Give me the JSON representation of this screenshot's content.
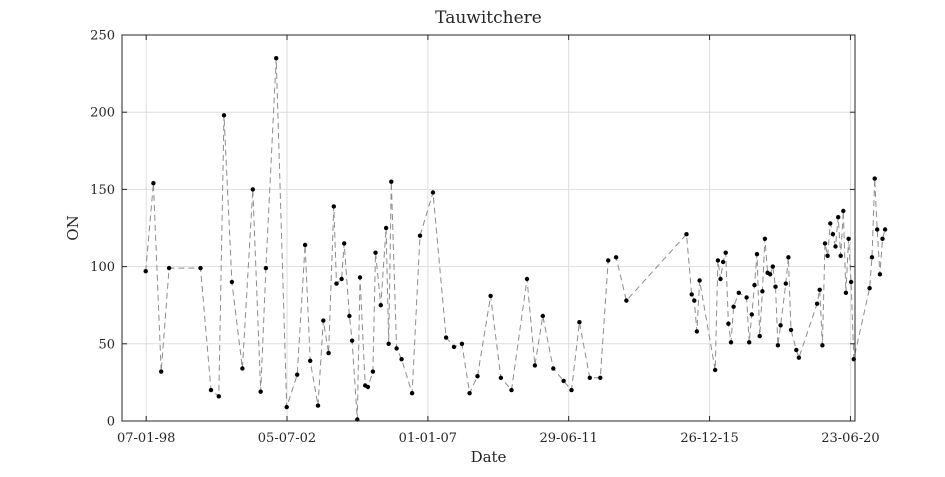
{
  "chart_data": {
    "type": "line",
    "title": "Tauwitchere",
    "xlabel": "Date",
    "ylabel": "ON",
    "ylim": [
      0,
      250
    ],
    "xlim": [
      "1997-03-31",
      "2020-08-15"
    ],
    "yticks": [
      0,
      50,
      100,
      150,
      200,
      250
    ],
    "xticks": [
      {
        "date": "1998-01-07",
        "label": "07-01-98"
      },
      {
        "date": "2002-07-05",
        "label": "05-07-02"
      },
      {
        "date": "2007-01-01",
        "label": "01-01-07"
      },
      {
        "date": "2011-06-29",
        "label": "29-06-11"
      },
      {
        "date": "2015-12-26",
        "label": "26-12-15"
      },
      {
        "date": "2020-06-23",
        "label": "23-06-20"
      }
    ],
    "grid": true,
    "line_style": "dashed",
    "line_color": "#8c8c8c",
    "marker_color": "#000000",
    "series": [
      {
        "points": [
          [
            "1998-01-01",
            97
          ],
          [
            "1998-04-01",
            154
          ],
          [
            "1998-07-01",
            32
          ],
          [
            "1998-10-01",
            99
          ],
          [
            "1999-10-01",
            99
          ],
          [
            "2000-02-01",
            20
          ],
          [
            "2000-05-01",
            16
          ],
          [
            "2000-07-01",
            198
          ],
          [
            "2000-10-01",
            90
          ],
          [
            "2001-02-01",
            34
          ],
          [
            "2001-06-01",
            150
          ],
          [
            "2001-09-01",
            19
          ],
          [
            "2001-11-01",
            99
          ],
          [
            "2002-03-01",
            235
          ],
          [
            "2002-07-01",
            9
          ],
          [
            "2002-11-01",
            30
          ],
          [
            "2003-02-01",
            114
          ],
          [
            "2003-04-01",
            39
          ],
          [
            "2003-07-01",
            10
          ],
          [
            "2003-09-01",
            65
          ],
          [
            "2003-11-01",
            44
          ],
          [
            "2004-01-01",
            139
          ],
          [
            "2004-02-01",
            89
          ],
          [
            "2004-04-01",
            92
          ],
          [
            "2004-05-01",
            115
          ],
          [
            "2004-07-01",
            68
          ],
          [
            "2004-08-01",
            52
          ],
          [
            "2004-10-01",
            1
          ],
          [
            "2004-11-01",
            93
          ],
          [
            "2005-01-01",
            23
          ],
          [
            "2005-02-01",
            22
          ],
          [
            "2005-04-01",
            32
          ],
          [
            "2005-05-01",
            109
          ],
          [
            "2005-07-01",
            75
          ],
          [
            "2005-09-01",
            125
          ],
          [
            "2005-10-01",
            50
          ],
          [
            "2005-11-01",
            155
          ],
          [
            "2006-01-01",
            47
          ],
          [
            "2006-03-01",
            40
          ],
          [
            "2006-07-01",
            18
          ],
          [
            "2006-10-01",
            120
          ],
          [
            "2007-03-01",
            148
          ],
          [
            "2007-08-01",
            54
          ],
          [
            "2007-11-01",
            48
          ],
          [
            "2008-02-01",
            50
          ],
          [
            "2008-05-01",
            18
          ],
          [
            "2008-08-01",
            29
          ],
          [
            "2009-01-01",
            81
          ],
          [
            "2009-05-01",
            28
          ],
          [
            "2009-09-01",
            20
          ],
          [
            "2010-03-01",
            92
          ],
          [
            "2010-06-01",
            36
          ],
          [
            "2010-09-01",
            68
          ],
          [
            "2011-01-01",
            34
          ],
          [
            "2011-05-01",
            26
          ],
          [
            "2011-08-01",
            20
          ],
          [
            "2011-11-01",
            64
          ],
          [
            "2012-03-01",
            28
          ],
          [
            "2012-07-01",
            28
          ],
          [
            "2012-10-01",
            104
          ],
          [
            "2013-01-01",
            106
          ],
          [
            "2013-05-01",
            78
          ],
          [
            "2015-04-01",
            121
          ],
          [
            "2015-06-01",
            82
          ],
          [
            "2015-07-01",
            78
          ],
          [
            "2015-08-01",
            58
          ],
          [
            "2015-09-01",
            91
          ],
          [
            "2016-03-01",
            33
          ],
          [
            "2016-04-01",
            104
          ],
          [
            "2016-05-01",
            92
          ],
          [
            "2016-06-01",
            103
          ],
          [
            "2016-07-01",
            109
          ],
          [
            "2016-08-01",
            63
          ],
          [
            "2016-09-01",
            51
          ],
          [
            "2016-10-01",
            74
          ],
          [
            "2016-12-01",
            83
          ],
          [
            "2017-03-01",
            80
          ],
          [
            "2017-04-01",
            51
          ],
          [
            "2017-05-01",
            69
          ],
          [
            "2017-06-01",
            88
          ],
          [
            "2017-07-01",
            108
          ],
          [
            "2017-08-01",
            55
          ],
          [
            "2017-09-01",
            84
          ],
          [
            "2017-10-01",
            118
          ],
          [
            "2017-11-01",
            96
          ],
          [
            "2017-12-01",
            95
          ],
          [
            "2018-01-01",
            100
          ],
          [
            "2018-02-01",
            87
          ],
          [
            "2018-03-01",
            49
          ],
          [
            "2018-04-01",
            62
          ],
          [
            "2018-06-01",
            89
          ],
          [
            "2018-07-01",
            106
          ],
          [
            "2018-08-01",
            59
          ],
          [
            "2018-10-01",
            46
          ],
          [
            "2018-11-01",
            41
          ],
          [
            "2019-06-01",
            76
          ],
          [
            "2019-07-01",
            85
          ],
          [
            "2019-08-01",
            49
          ],
          [
            "2019-09-01",
            115
          ],
          [
            "2019-10-01",
            107
          ],
          [
            "2019-11-01",
            128
          ],
          [
            "2019-12-01",
            121
          ],
          [
            "2020-01-01",
            113
          ],
          [
            "2020-02-01",
            132
          ],
          [
            "2020-03-01",
            107
          ],
          [
            "2020-04-01",
            136
          ],
          [
            "2020-05-01",
            83
          ],
          [
            "2020-06-01",
            118
          ],
          [
            "2020-07-01",
            90
          ],
          [
            "2020-08-01",
            40
          ],
          [
            "2021-02-01",
            86
          ],
          [
            "2021-03-01",
            106
          ],
          [
            "2021-04-01",
            157
          ],
          [
            "2021-05-01",
            124
          ],
          [
            "2021-06-01",
            95
          ],
          [
            "2021-07-01",
            118
          ],
          [
            "2021-08-01",
            124
          ]
        ]
      }
    ]
  }
}
